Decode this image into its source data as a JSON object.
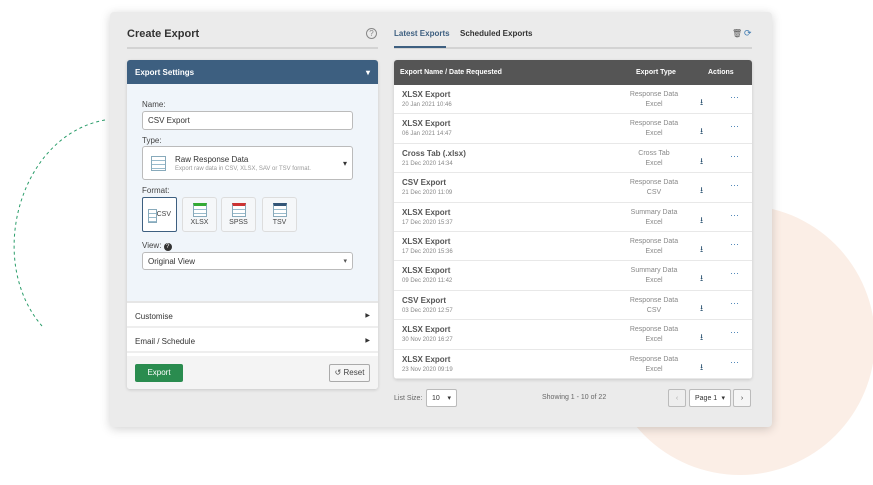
{
  "colors": {
    "header": "#3d5f80",
    "table_header": "#555555",
    "export_button": "#2a8c4f",
    "tab_active": "#3d5f80",
    "peach": "#fbeee6",
    "arc": "#2a9d6a"
  },
  "left": {
    "title": "Create Export",
    "help_icon": "question-circle-icon",
    "settings": {
      "title": "Export Settings",
      "name_label": "Name:",
      "name_value": "CSV Export",
      "type_label": "Type:",
      "type_title": "Raw Response Data",
      "type_desc": "Export raw data in CSV, XLSX, SAV or TSV format.",
      "format_label": "Format:",
      "formats": [
        "CSV",
        "XLSX",
        "SPSS",
        "TSV"
      ],
      "selected_format": "CSV",
      "view_label": "View:",
      "view_value": "Original View"
    },
    "customise": "Customise",
    "email_schedule": "Email / Schedule",
    "export_button": "Export",
    "reset_button": "Reset"
  },
  "right": {
    "tabs": [
      "Latest Exports",
      "Scheduled Exports"
    ],
    "active_tab": "Latest Exports",
    "columns": [
      "Export Name / Date Requested",
      "Export Type",
      "Actions"
    ],
    "rows": [
      {
        "name": "XLSX Export",
        "date": "20 Jan 2021 10:46",
        "type": "Response Data",
        "format": "Excel"
      },
      {
        "name": "XLSX Export",
        "date": "06 Jan 2021 14:47",
        "type": "Response Data",
        "format": "Excel"
      },
      {
        "name": "Cross Tab (.xlsx)",
        "date": "21 Dec 2020 14:34",
        "type": "Cross Tab",
        "format": "Excel"
      },
      {
        "name": "CSV Export",
        "date": "21 Dec 2020 11:09",
        "type": "Response Data",
        "format": "CSV"
      },
      {
        "name": "XLSX Export",
        "date": "17 Dec 2020 15:37",
        "type": "Summary Data",
        "format": "Excel"
      },
      {
        "name": "XLSX Export",
        "date": "17 Dec 2020 15:36",
        "type": "Response Data",
        "format": "Excel"
      },
      {
        "name": "XLSX Export",
        "date": "09 Dec 2020 11:42",
        "type": "Summary Data",
        "format": "Excel"
      },
      {
        "name": "CSV Export",
        "date": "03 Dec 2020 12:57",
        "type": "Response Data",
        "format": "CSV"
      },
      {
        "name": "XLSX Export",
        "date": "30 Nov 2020 16:27",
        "type": "Response Data",
        "format": "Excel"
      },
      {
        "name": "XLSX Export",
        "date": "23 Nov 2020 09:19",
        "type": "Response Data",
        "format": "Excel"
      }
    ],
    "list_size_label": "List Size:",
    "list_size": "10",
    "showing": "Showing 1 - 10 of 22",
    "page": "Page 1"
  }
}
